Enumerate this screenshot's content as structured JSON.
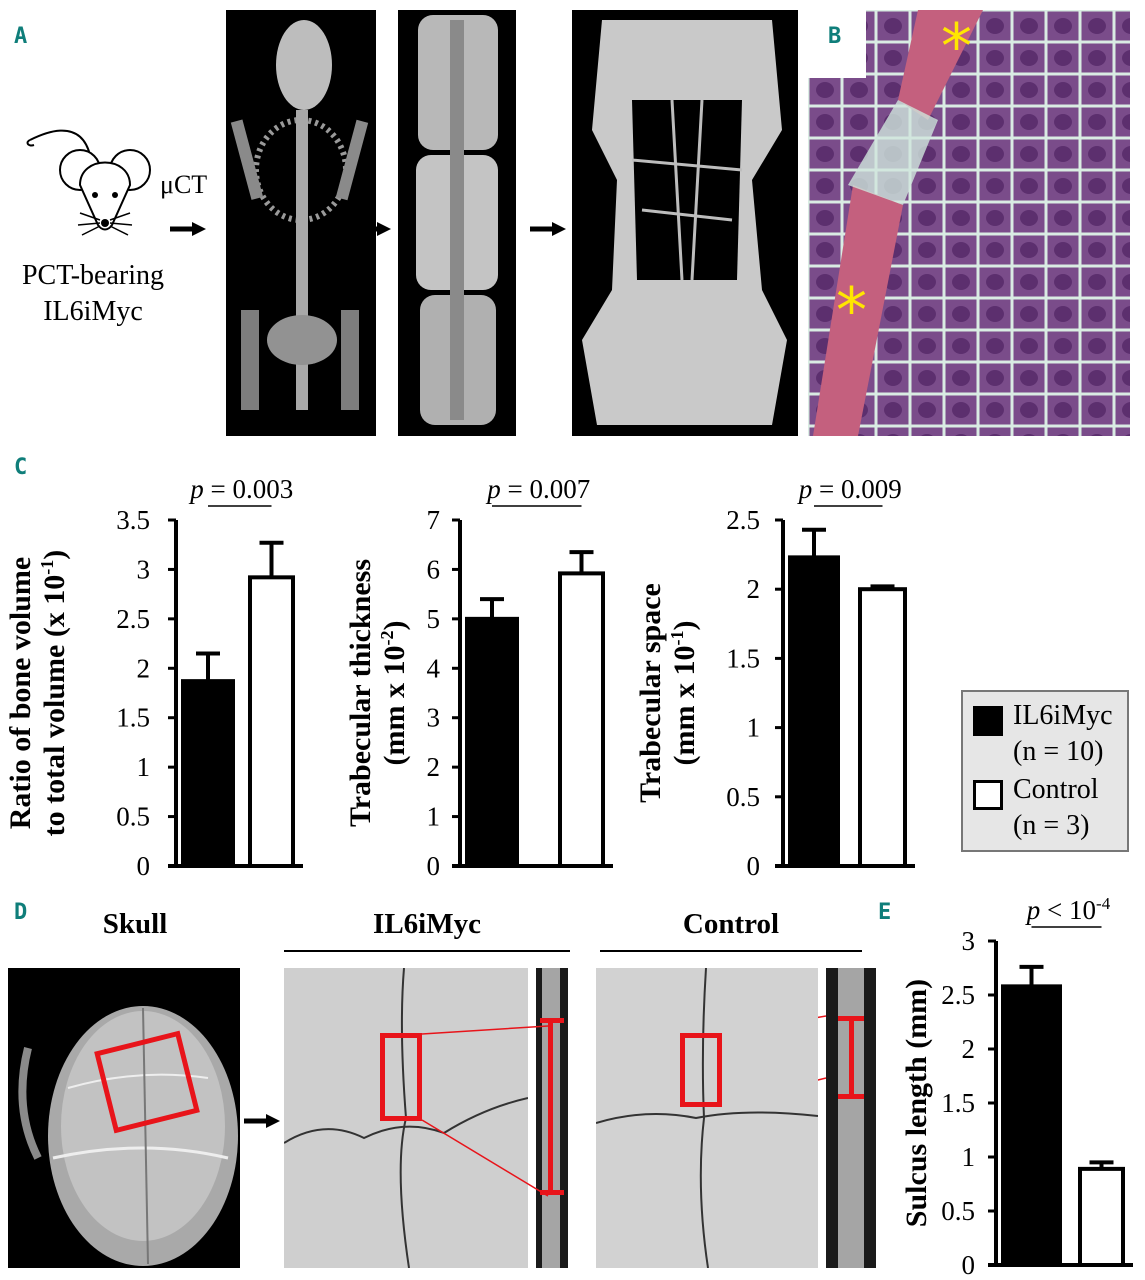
{
  "panels": {
    "a": {
      "label": "A",
      "modality": "μCT",
      "mouse_caption": [
        "PCT-bearing",
        "IL6iMyc"
      ],
      "icons": [
        "mouse-icon",
        "arrow-right-icon"
      ]
    },
    "b": {
      "label": "B",
      "marker": "*",
      "marker_color": "#ffe600"
    },
    "c": {
      "label": "C"
    },
    "d": {
      "label": "D",
      "headers": {
        "skull": "Skull",
        "il6imyc": "IL6iMyc",
        "control": "Control"
      },
      "highlight_color": "#e8141a"
    },
    "e": {
      "label": "E"
    }
  },
  "legend": {
    "items": [
      {
        "name": "IL6iMyc",
        "n": "(n = 10)",
        "fill": "#000000"
      },
      {
        "name": "Control",
        "n": "(n = 3)",
        "fill": "#ffffff"
      }
    ]
  },
  "chart_data": [
    {
      "type": "bar",
      "panel": "C",
      "categories": [
        "IL6iMyc",
        "Control"
      ],
      "values": [
        1.87,
        2.92
      ],
      "error_upper": [
        2.15,
        3.27
      ],
      "ylim": [
        0,
        3.5
      ],
      "yticks": [
        "0",
        "0.5",
        "1",
        "1.5",
        "2",
        "2.5",
        "3",
        "3.5"
      ],
      "ylabel": [
        {
          "text": "Ratio of bone volume"
        },
        {
          "text": "to total volume (x 10",
          "sup": "-1",
          "tail": ")"
        }
      ],
      "significance": {
        "symbol": "p",
        "text": " = 0.003"
      }
    },
    {
      "type": "bar",
      "panel": "C",
      "categories": [
        "IL6iMyc",
        "Control"
      ],
      "values": [
        5.0,
        5.92
      ],
      "error_upper": [
        5.4,
        6.35
      ],
      "ylim": [
        0,
        7
      ],
      "yticks": [
        "0",
        "1",
        "2",
        "3",
        "4",
        "5",
        "6",
        "7"
      ],
      "ylabel": [
        {
          "text": "Trabecular thickness"
        },
        {
          "text": "(mm x 10",
          "sup": "-2",
          "tail": ")"
        }
      ],
      "significance": {
        "symbol": "p",
        "text": " = 0.007"
      }
    },
    {
      "type": "bar",
      "panel": "C",
      "categories": [
        "IL6iMyc",
        "Control"
      ],
      "values": [
        2.23,
        2.0
      ],
      "error_upper": [
        2.43,
        2.02
      ],
      "ylim": [
        0,
        2.5
      ],
      "yticks": [
        "0",
        "0.5",
        "1",
        "1.5",
        "2",
        "2.5"
      ],
      "ylabel": [
        {
          "text": "Trabecular space"
        },
        {
          "text": "(mm x 10",
          "sup": "-1",
          "tail": ")"
        }
      ],
      "significance": {
        "symbol": "p",
        "text": " = 0.009"
      }
    },
    {
      "type": "bar",
      "panel": "E",
      "categories": [
        "IL6iMyc",
        "Control"
      ],
      "values": [
        2.58,
        0.89
      ],
      "error_upper": [
        2.76,
        0.95
      ],
      "ylim": [
        0,
        3
      ],
      "yticks": [
        "0",
        "0.5",
        "1",
        "1.5",
        "2",
        "2.5",
        "3"
      ],
      "ylabel": [
        {
          "text": "Sulcus length (mm)"
        }
      ],
      "significance": {
        "symbol": "p",
        "text": " < 10",
        "sup": "-4"
      }
    }
  ]
}
